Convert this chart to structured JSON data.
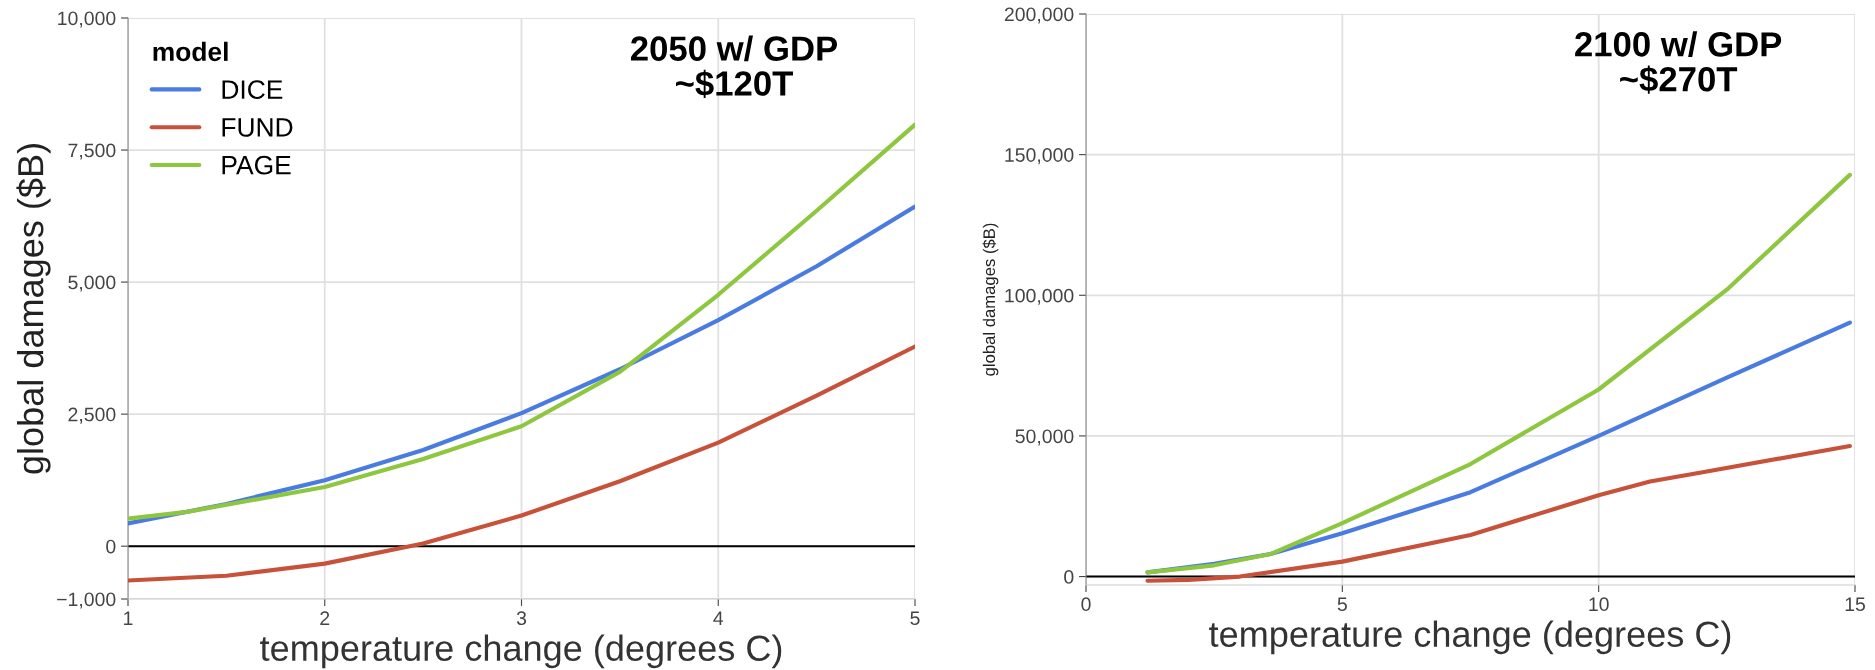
{
  "chart_data": [
    {
      "type": "line",
      "xlabel": "temperature change (degrees C)",
      "ylabel": "global damages ($B)",
      "legend_title": "model",
      "legend": "top left",
      "grid": true,
      "annotations": [
        "2050 w/ GDP\n~$120T"
      ],
      "xlim": [
        1,
        5
      ],
      "xticks": [
        1,
        2,
        3,
        4,
        5
      ],
      "ylim": [
        -1000,
        10000
      ],
      "yticks": [
        {
          "value": -1000,
          "label": "−1,000"
        },
        0,
        {
          "value": 2500,
          "label": "2,500"
        },
        {
          "value": 5000,
          "label": "5,000"
        },
        {
          "value": 7500,
          "label": "7,500"
        },
        {
          "value": 10000,
          "label": "10,000"
        }
      ],
      "ref_lines": [
        {
          "axis": "y",
          "value": 0,
          "color": "#000000"
        }
      ],
      "series": [
        {
          "name": "DICE",
          "color": "#4a7be0",
          "x": [
            1,
            1.5,
            2,
            2.5,
            3,
            3.5,
            4,
            4.5,
            5
          ],
          "values": [
            430,
            800,
            1250,
            1820,
            2520,
            3350,
            4280,
            5300,
            6430
          ]
        },
        {
          "name": "FUND",
          "color": "#c8513a",
          "x": [
            1,
            1.5,
            2,
            2.5,
            3,
            3.5,
            4,
            4.5,
            5
          ],
          "values": [
            -650,
            -560,
            -330,
            50,
            580,
            1230,
            1960,
            2850,
            3780
          ]
        },
        {
          "name": "PAGE",
          "color": "#8dc63f",
          "x": [
            1,
            1.3,
            2,
            2.5,
            3,
            3.5,
            4,
            4.5,
            5
          ],
          "values": [
            520,
            650,
            1120,
            1650,
            2270,
            3300,
            4760,
            6350,
            7980
          ]
        }
      ]
    },
    {
      "type": "line",
      "xlabel": "temperature change (degrees C)",
      "ylabel": "global damages ($B)",
      "grid": true,
      "annotations": [
        "2100 w/ GDP\n~$270T"
      ],
      "xlim": [
        0,
        15
      ],
      "xticks": [
        0,
        5,
        10,
        15
      ],
      "ylim": [
        -3000,
        200000
      ],
      "yticks": [
        0,
        {
          "value": 50000,
          "label": "50,000"
        },
        {
          "value": 100000,
          "label": "100,000"
        },
        {
          "value": 150000,
          "label": "150,000"
        },
        {
          "value": 200000,
          "label": "200,000"
        }
      ],
      "ref_lines": [
        {
          "axis": "y",
          "value": 0,
          "color": "#000000"
        }
      ],
      "series": [
        {
          "color": "#4a7be0",
          "x": [
            1.2,
            2.5,
            3.6,
            5,
            7.5,
            10,
            12.5,
            14.9
          ],
          "values": [
            1500,
            4500,
            8000,
            15400,
            30000,
            50000,
            70700,
            90300
          ]
        },
        {
          "color": "#c8513a",
          "x": [
            1.2,
            2,
            3,
            5,
            7.5,
            10,
            11,
            12,
            14.9
          ],
          "values": [
            -1500,
            -1200,
            0,
            5300,
            14800,
            28900,
            33800,
            37000,
            46400
          ]
        },
        {
          "color": "#8dc63f",
          "x": [
            1.2,
            2.5,
            3.6,
            5,
            7.5,
            10,
            12.5,
            14.9
          ],
          "values": [
            1500,
            4000,
            8000,
            19000,
            40000,
            66500,
            102000,
            142800
          ]
        }
      ]
    }
  ]
}
